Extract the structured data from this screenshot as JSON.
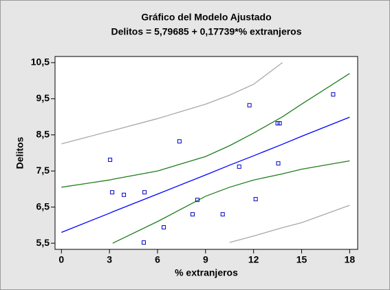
{
  "chart_data": {
    "type": "scatter",
    "title": "Gráfico del Modelo Ajustado",
    "subtitle": "Delitos = 5,79685 + 0,17739*% extranjeros",
    "x_label": "% extranjeros",
    "y_label": "Delitos",
    "xlim": [
      -0.4,
      18.5
    ],
    "ylim": [
      5.33,
      10.67
    ],
    "xticks": [
      0,
      3,
      6,
      9,
      12,
      15,
      18
    ],
    "yticks": [
      {
        "value": 5.5,
        "label": "5,5"
      },
      {
        "value": 6.5,
        "label": "6,5"
      },
      {
        "value": 7.5,
        "label": "7,5"
      },
      {
        "value": 8.5,
        "label": "8,5"
      },
      {
        "value": 9.5,
        "label": "9,5"
      },
      {
        "value": 10.5,
        "label": "10,5"
      }
    ],
    "points": {
      "color": "#0000c8",
      "x": [
        3.04,
        3.17,
        3.9,
        5.19,
        5.14,
        6.39,
        7.37,
        8.19,
        8.49,
        10.07,
        11.1,
        11.74,
        12.13,
        13.5,
        13.63,
        13.54,
        16.97
      ],
      "values": [
        7.81,
        6.91,
        6.84,
        6.91,
        5.52,
        5.94,
        8.32,
        6.3,
        6.7,
        6.3,
        7.62,
        9.32,
        6.72,
        8.82,
        8.82,
        7.71,
        9.62
      ]
    },
    "x": [
      0,
      3,
      3.2,
      6,
      9,
      10.5,
      12,
      13.8,
      15,
      18
    ],
    "series": [
      {
        "color": "#0000ff",
        "values": [
          5.8,
          6.33,
          6.37,
          6.86,
          7.39,
          7.66,
          7.92,
          8.24,
          8.46,
          8.99
        ]
      },
      {
        "color": "#1e7d1e",
        "values": [
          7.05,
          7.25,
          7.27,
          7.5,
          7.9,
          8.2,
          8.55,
          9.0,
          9.35,
          10.2
        ]
      },
      {
        "color": "#1e7d1e",
        "values": [
          null,
          null,
          5.5,
          6.1,
          6.8,
          7.05,
          7.25,
          7.42,
          7.55,
          7.78
        ]
      },
      {
        "color": "#a8a8a8",
        "values": [
          8.25,
          8.6,
          8.62,
          8.95,
          9.35,
          9.6,
          9.9,
          10.5,
          null,
          null
        ]
      },
      {
        "color": "#a8a8a8",
        "values": [
          null,
          null,
          null,
          null,
          null,
          5.52,
          5.7,
          5.93,
          6.07,
          6.55
        ]
      }
    ]
  }
}
